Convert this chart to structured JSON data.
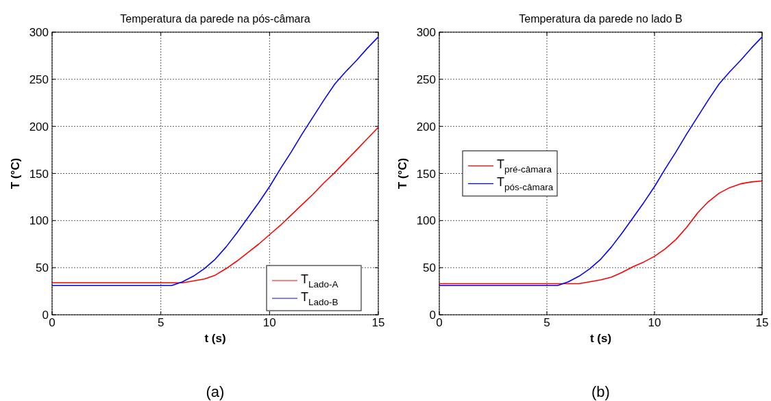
{
  "chart_data": [
    {
      "type": "line",
      "title": "Temperatura da parede na pós-câmara",
      "xlabel": "t (s)",
      "ylabel": "T (°C)",
      "x": [
        0,
        0.5,
        1,
        1.5,
        2,
        2.5,
        3,
        3.5,
        4,
        4.5,
        5,
        5.5,
        6,
        6.5,
        7,
        7.5,
        8,
        8.5,
        9,
        9.5,
        10,
        10.5,
        11,
        11.5,
        12,
        12.5,
        13,
        13.5,
        14,
        14.5,
        15
      ],
      "xlim": [
        0,
        15
      ],
      "xticks": [
        0,
        5,
        10,
        15
      ],
      "ylim": [
        0,
        300
      ],
      "yticks": [
        0,
        50,
        100,
        150,
        200,
        250,
        300
      ],
      "grid": true,
      "legend": "bottom right",
      "annotations": [
        "(a)"
      ],
      "series": [
        {
          "name": "T$_{Lado-A}$",
          "color": "#ff0000",
          "values": [
            34,
            34,
            34,
            34,
            34,
            34,
            34,
            34,
            34,
            34,
            34,
            34,
            34,
            36,
            38,
            42,
            49,
            57,
            66,
            75,
            85,
            95,
            106,
            117,
            128,
            140,
            151,
            163,
            175,
            187,
            199
          ]
        },
        {
          "name": "T$_{Lado-B}$",
          "color": "#0000ff",
          "values": [
            31,
            31,
            31,
            31,
            31,
            31,
            31,
            31,
            31,
            31,
            31,
            31,
            35,
            41,
            49,
            59,
            72,
            87,
            103,
            119,
            136,
            155,
            173,
            192,
            210,
            228,
            245,
            258,
            270,
            283,
            295
          ]
        }
      ]
    },
    {
      "type": "line",
      "title": "Temperatura da parede no lado B",
      "xlabel": "t (s)",
      "ylabel": "T (°C)",
      "x": [
        0,
        0.5,
        1,
        1.5,
        2,
        2.5,
        3,
        3.5,
        4,
        4.5,
        5,
        5.5,
        6,
        6.5,
        7,
        7.5,
        8,
        8.5,
        9,
        9.5,
        10,
        10.5,
        11,
        11.5,
        12,
        12.5,
        13,
        13.5,
        14,
        14.5,
        15
      ],
      "xlim": [
        0,
        15
      ],
      "xticks": [
        0,
        5,
        10,
        15
      ],
      "ylim": [
        0,
        300
      ],
      "yticks": [
        0,
        50,
        100,
        150,
        200,
        250,
        300
      ],
      "grid": true,
      "legend": "left",
      "annotations": [
        "(b)"
      ],
      "series": [
        {
          "name": "T$_{pré-câmara}$",
          "color": "#ff0000",
          "values": [
            33,
            33,
            33,
            33,
            33,
            33,
            33,
            33,
            33,
            33,
            33,
            33,
            33,
            33,
            35,
            37,
            40,
            45,
            51,
            56,
            62,
            70,
            80,
            93,
            108,
            120,
            129,
            135,
            139,
            141,
            142
          ]
        },
        {
          "name": "T$_{pós-câmara}$",
          "color": "#0000ff",
          "values": [
            31,
            31,
            31,
            31,
            31,
            31,
            31,
            31,
            31,
            31,
            31,
            31,
            35,
            41,
            49,
            59,
            72,
            87,
            103,
            119,
            136,
            155,
            173,
            192,
            210,
            228,
            245,
            258,
            270,
            283,
            295
          ]
        }
      ]
    }
  ]
}
